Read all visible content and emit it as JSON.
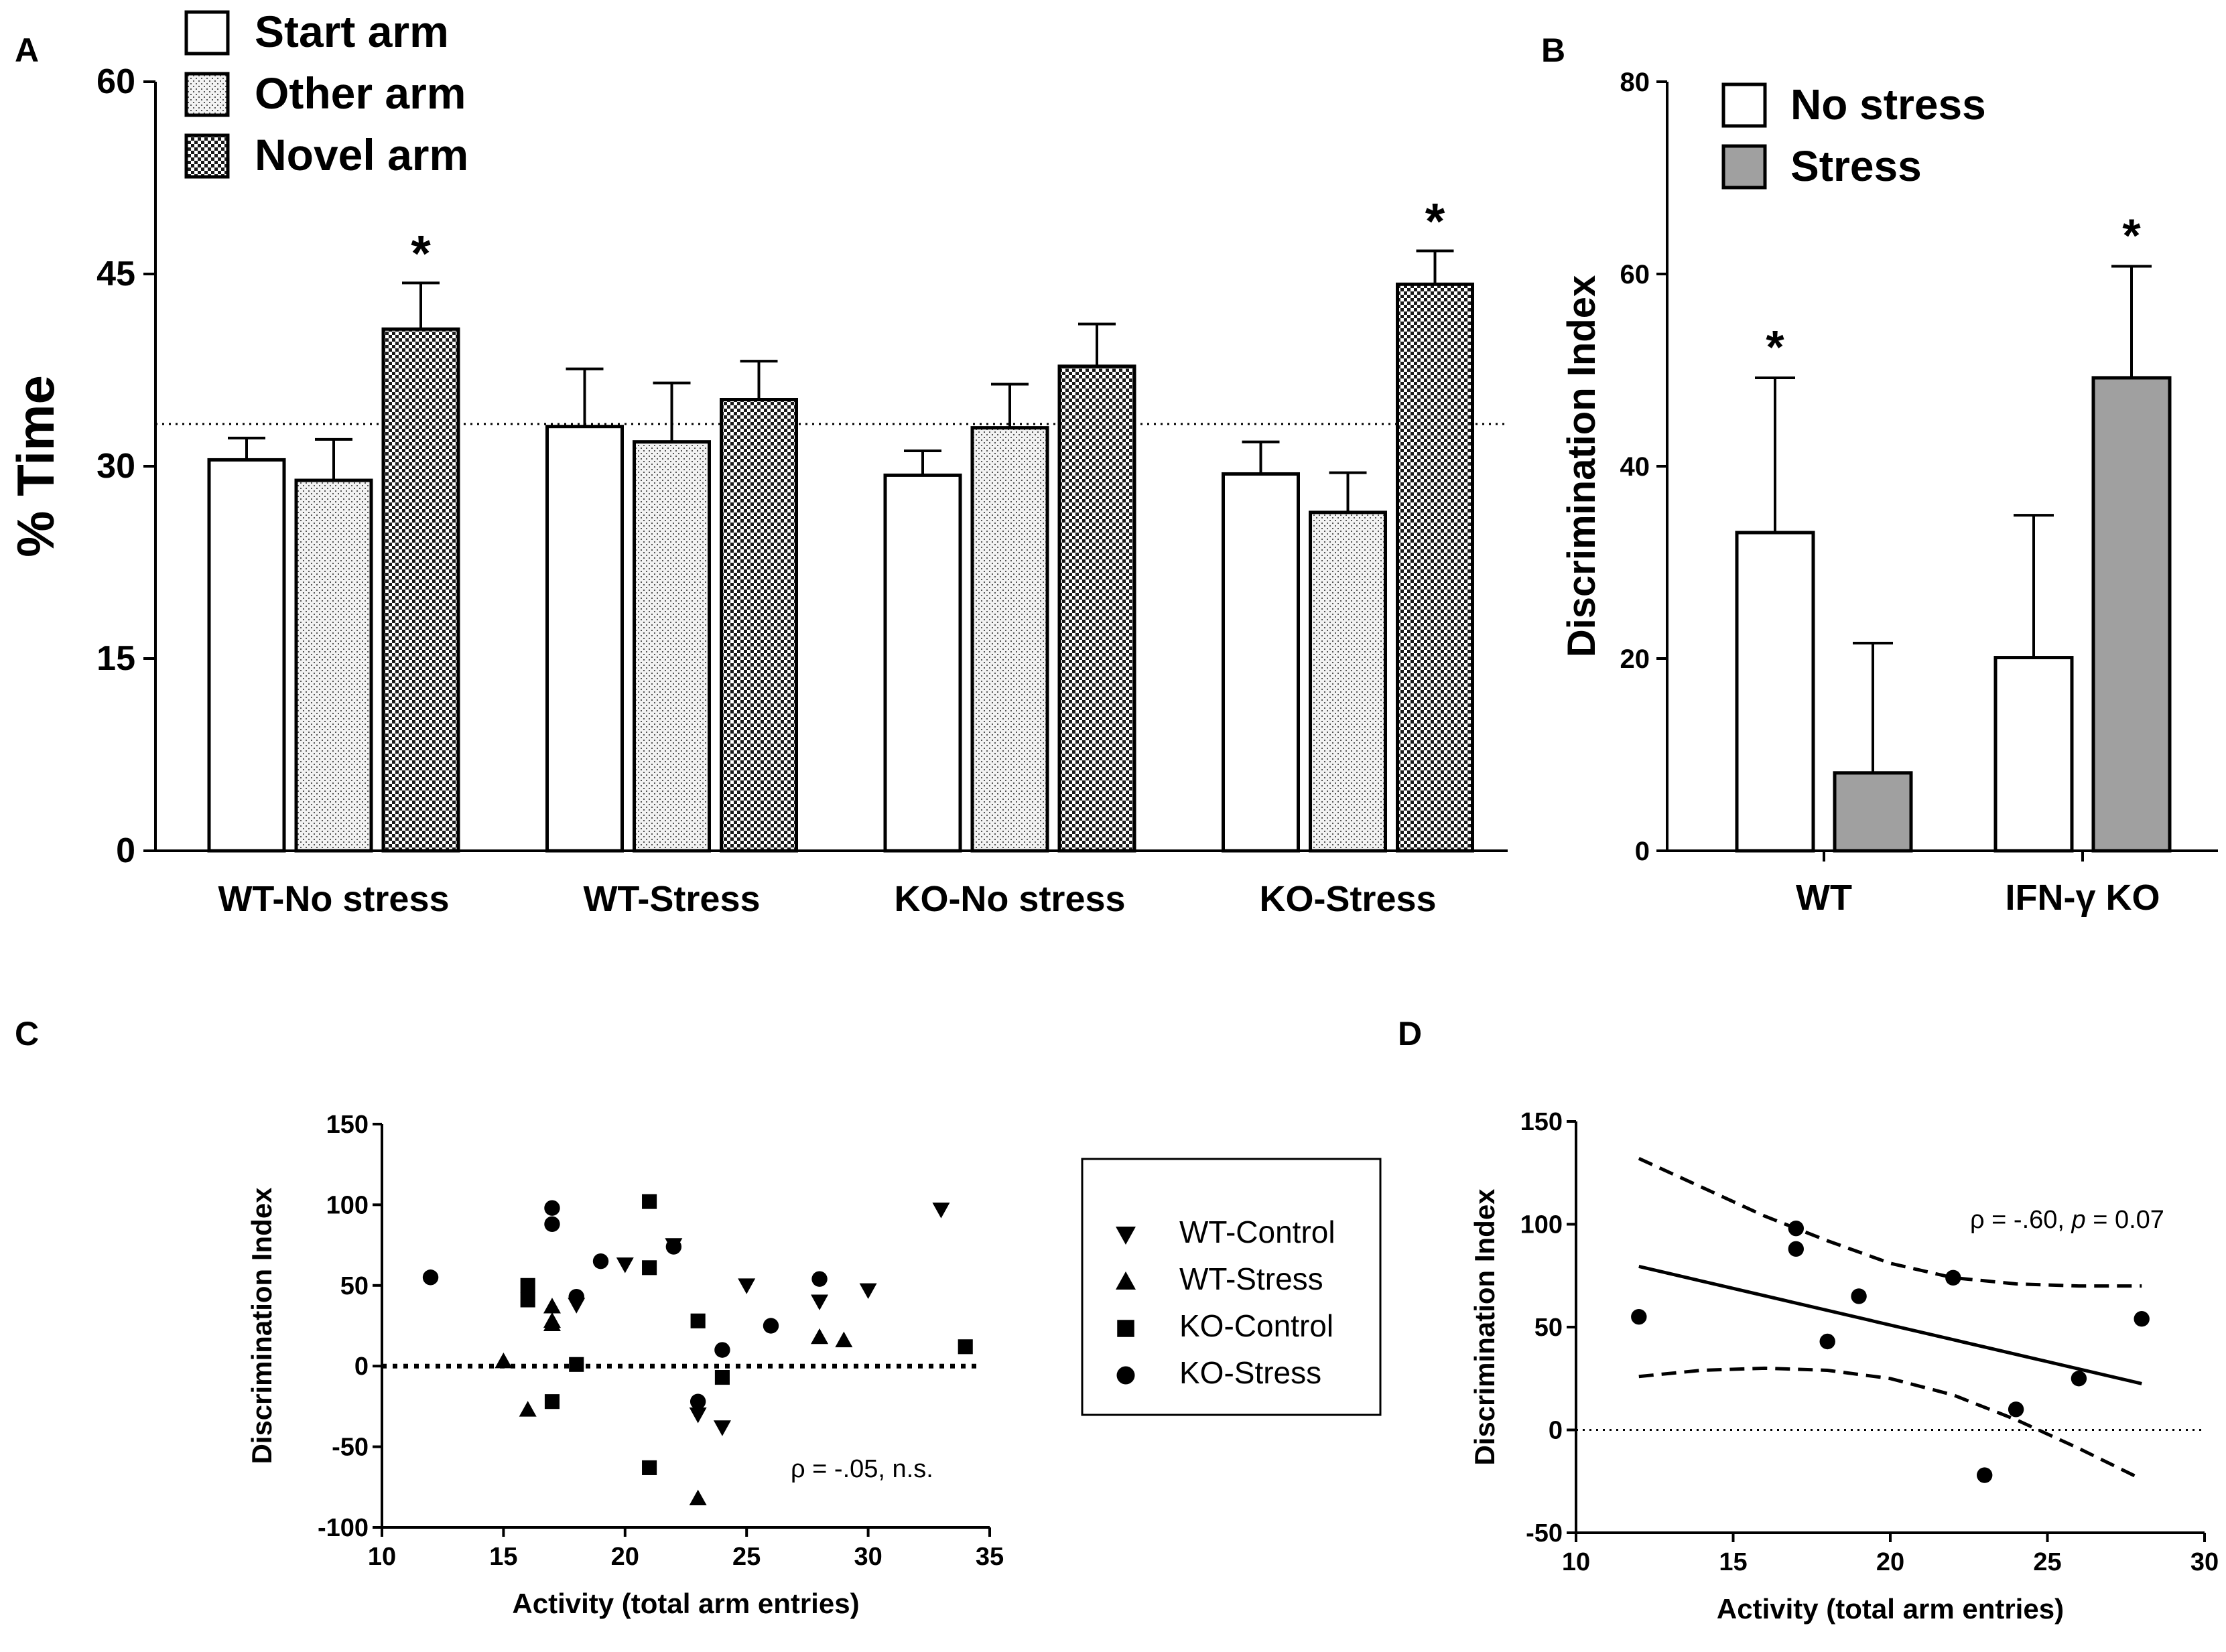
{
  "chart_data": [
    {
      "panel": "A",
      "type": "bar",
      "ylabel": "% Time",
      "ylim": [
        0,
        60
      ],
      "yticks": [
        "0",
        "15",
        "30",
        "45",
        "60"
      ],
      "categories": [
        "WT-No stress",
        "WT-Stress",
        "KO-No stress",
        "KO-Stress"
      ],
      "legend": "top-left",
      "reference_line": 33.3,
      "series": [
        {
          "name": "Start arm",
          "values": [
            30.5,
            33.1,
            29.3,
            29.4
          ],
          "errors": [
            1.7,
            4.5,
            1.9,
            2.5
          ]
        },
        {
          "name": "Other arm",
          "values": [
            28.9,
            31.9,
            33.0,
            26.4
          ],
          "errors": [
            3.2,
            4.6,
            3.4,
            3.1
          ]
        },
        {
          "name": "Novel arm",
          "values": [
            40.7,
            35.2,
            37.8,
            44.2
          ],
          "errors": [
            3.6,
            3.0,
            3.3,
            2.6
          ]
        }
      ],
      "significance": [
        {
          "series": "Novel arm",
          "category": "WT-No stress",
          "mark": "*"
        },
        {
          "series": "Novel arm",
          "category": "KO-Stress",
          "mark": "*"
        }
      ],
      "colors": {
        "start": "#ffffff",
        "other": "#e8e8e8",
        "novel": "#6e6e6e"
      }
    },
    {
      "panel": "B",
      "type": "bar",
      "ylabel": "Discrimination Index",
      "ylim": [
        0,
        80
      ],
      "yticks": [
        "0",
        "20",
        "40",
        "60",
        "80"
      ],
      "categories": [
        "WT",
        "IFN-γ KO"
      ],
      "legend": "top-left",
      "series": [
        {
          "name": "No stress",
          "values": [
            33.1,
            20.1
          ],
          "errors": [
            16.1,
            14.8
          ]
        },
        {
          "name": "Stress",
          "values": [
            8.1,
            49.2
          ],
          "errors": [
            13.5,
            11.6
          ]
        }
      ],
      "significance": [
        {
          "series": "No stress",
          "category": "WT",
          "mark": "*"
        },
        {
          "series": "Stress",
          "category": "IFN-γ KO",
          "mark": "*"
        }
      ],
      "colors": {
        "no_stress": "#ffffff",
        "stress": "#a0a0a0"
      }
    },
    {
      "panel": "C",
      "type": "scatter",
      "xlabel": "Activity (total arm entries)",
      "ylabel": "Discrimination Index",
      "xlim": [
        10,
        35
      ],
      "ylim": [
        -100,
        150
      ],
      "xticks": [
        "10",
        "15",
        "20",
        "25",
        "30",
        "35"
      ],
      "yticks": [
        "-100",
        "-50",
        "0",
        "50",
        "100",
        "150"
      ],
      "legend": "right",
      "annotation": "ρ = -.05, n.s.",
      "series": [
        {
          "name": "WT-Control",
          "marker": "triangle-down",
          "points": [
            [
              18,
              38
            ],
            [
              20,
              63
            ],
            [
              22,
              75
            ],
            [
              24,
              -38
            ],
            [
              25,
              50
            ],
            [
              28,
              40
            ],
            [
              30,
              47
            ],
            [
              33,
              97
            ],
            [
              23,
              -30
            ]
          ]
        },
        {
          "name": "WT-Stress",
          "marker": "triangle-up",
          "points": [
            [
              15,
              3
            ],
            [
              16,
              -27
            ],
            [
              17,
              37
            ],
            [
              17,
              28
            ],
            [
              17,
              26
            ],
            [
              23,
              -82
            ],
            [
              28,
              18
            ],
            [
              29,
              16
            ]
          ]
        },
        {
          "name": "KO-Control",
          "marker": "square",
          "points": [
            [
              16,
              50
            ],
            [
              16,
              41
            ],
            [
              17,
              -22
            ],
            [
              18,
              1
            ],
            [
              21,
              102
            ],
            [
              21,
              61
            ],
            [
              21,
              -63
            ],
            [
              23,
              28
            ],
            [
              24,
              -7
            ],
            [
              34,
              12
            ]
          ]
        },
        {
          "name": "KO-Stress",
          "marker": "circle",
          "points": [
            [
              12,
              55
            ],
            [
              17,
              98
            ],
            [
              17,
              88
            ],
            [
              18,
              43
            ],
            [
              19,
              65
            ],
            [
              22,
              74
            ],
            [
              23,
              -22
            ],
            [
              24,
              10
            ],
            [
              26,
              25
            ],
            [
              28,
              54
            ]
          ]
        }
      ]
    },
    {
      "panel": "D",
      "type": "scatter",
      "xlabel": "Activity (total arm entries)",
      "ylabel": "Discrimination Index",
      "xlim": [
        10,
        30
      ],
      "ylim": [
        -50,
        150
      ],
      "xticks": [
        "10",
        "15",
        "20",
        "25",
        "30"
      ],
      "yticks": [
        "-50",
        "0",
        "50",
        "100",
        "150"
      ],
      "annotation_prefix": "ρ = -.60,",
      "annotation_p": "p",
      "annotation_suffix": "= 0.07",
      "points": [
        [
          12,
          55
        ],
        [
          17,
          98
        ],
        [
          17,
          88
        ],
        [
          18,
          43
        ],
        [
          19,
          65
        ],
        [
          22,
          74
        ],
        [
          23,
          -22
        ],
        [
          24,
          10
        ],
        [
          26,
          25
        ],
        [
          28,
          54
        ]
      ],
      "regression": [
        [
          12,
          79.5
        ],
        [
          28,
          22.5
        ]
      ],
      "ci_upper": [
        [
          12,
          132
        ],
        [
          14,
          118
        ],
        [
          16,
          104
        ],
        [
          18,
          92
        ],
        [
          20,
          81
        ],
        [
          22,
          74
        ],
        [
          24,
          71
        ],
        [
          26,
          70
        ],
        [
          28,
          70
        ]
      ],
      "ci_lower": [
        [
          12,
          26
        ],
        [
          14,
          29
        ],
        [
          16,
          30
        ],
        [
          18,
          29
        ],
        [
          20,
          25
        ],
        [
          22,
          17
        ],
        [
          24,
          5
        ],
        [
          26,
          -9
        ],
        [
          28,
          -24
        ]
      ]
    }
  ]
}
